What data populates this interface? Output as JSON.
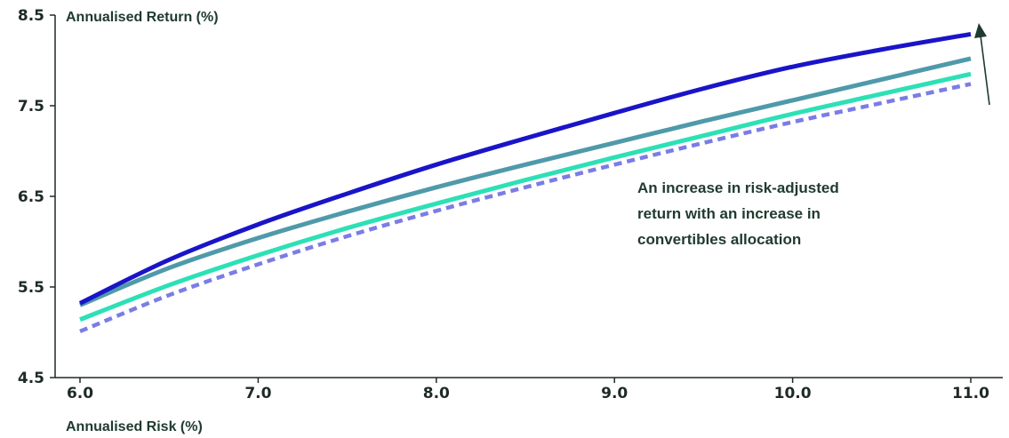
{
  "chart_data": {
    "type": "line",
    "xlabel": "Annualised Risk (%)",
    "ylabel": "Annualised Return (%)",
    "xlim": [
      6.0,
      11.0
    ],
    "ylim": [
      4.5,
      8.5
    ],
    "xticks": [
      "6.0",
      "7.0",
      "8.0",
      "9.0",
      "10.0",
      "11.0"
    ],
    "yticks": [
      "4.5",
      "5.5",
      "6.5",
      "7.5",
      "8.5"
    ],
    "grid": false,
    "annotation": {
      "lines": [
        "An increase in risk-adjusted",
        "return with an increase in",
        "convertibles allocation"
      ],
      "arrow_direction": "up"
    },
    "series": [
      {
        "color": "#1a14c8",
        "style": "solid",
        "x": [
          6.0,
          6.5,
          7.0,
          7.5,
          8.0,
          8.5,
          9.0,
          9.5,
          10.0,
          10.5,
          11.0
        ],
        "y": [
          5.32,
          5.8,
          6.19,
          6.53,
          6.85,
          7.14,
          7.42,
          7.69,
          7.93,
          8.12,
          8.29
        ]
      },
      {
        "color": "#4f9aaa",
        "style": "solid",
        "x": [
          6.0,
          6.5,
          7.0,
          7.5,
          8.0,
          8.5,
          9.0,
          9.5,
          10.0,
          10.5,
          11.0
        ],
        "y": [
          5.3,
          5.71,
          6.04,
          6.33,
          6.6,
          6.85,
          7.09,
          7.33,
          7.56,
          7.79,
          8.02
        ]
      },
      {
        "color": "#2de0b6",
        "style": "solid",
        "x": [
          6.0,
          6.5,
          7.0,
          7.5,
          8.0,
          8.5,
          9.0,
          9.5,
          10.0,
          10.5,
          11.0
        ],
        "y": [
          5.14,
          5.52,
          5.85,
          6.15,
          6.42,
          6.68,
          6.93,
          7.17,
          7.41,
          7.63,
          7.85
        ]
      },
      {
        "color": "#7b7ce6",
        "style": "dashed",
        "x": [
          6.0,
          6.5,
          7.0,
          7.5,
          8.0,
          8.5,
          9.0,
          9.5,
          10.0,
          10.5,
          11.0
        ],
        "y": [
          5.01,
          5.41,
          5.75,
          6.06,
          6.34,
          6.6,
          6.85,
          7.09,
          7.32,
          7.53,
          7.74
        ]
      }
    ]
  }
}
